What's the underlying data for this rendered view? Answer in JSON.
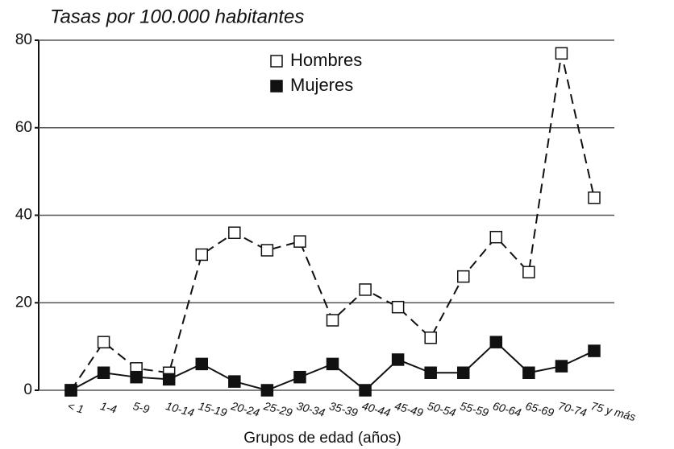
{
  "chart_data": {
    "type": "line",
    "title": "Tasas por 100.000 habitantes",
    "x_label": "Grupos de edad (años)",
    "categories": [
      "< 1",
      "1-4",
      "5-9",
      "10-14",
      "15-19",
      "20-24",
      "25-29",
      "30-34",
      "35-39",
      "40-44",
      "45-49",
      "50-54",
      "55-59",
      "60-64",
      "65-69",
      "70-74",
      "75 y más"
    ],
    "series": [
      {
        "name": "Hombres",
        "color": "#111111",
        "dashed": true,
        "filled": false,
        "values": [
          0,
          11,
          5,
          4,
          31,
          36,
          32,
          34,
          16,
          23,
          19,
          12,
          26,
          35,
          27,
          77,
          44
        ]
      },
      {
        "name": "Mujeres",
        "color": "#111111",
        "dashed": false,
        "filled": true,
        "values": [
          0,
          4,
          3,
          2.5,
          6,
          2,
          0,
          3,
          6,
          0,
          7,
          4,
          4,
          11,
          4,
          5.5,
          9
        ]
      }
    ],
    "ylim": [
      0,
      80
    ],
    "yticks": [
      0,
      20,
      40,
      60,
      80
    ],
    "grid": true
  }
}
